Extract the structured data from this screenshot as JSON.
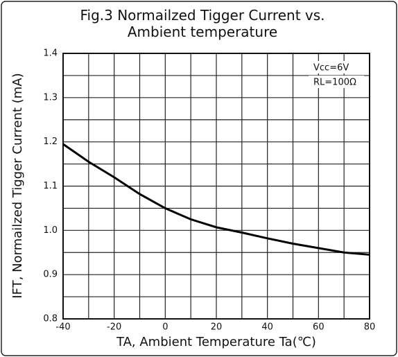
{
  "chart_data": {
    "type": "line",
    "title": "Fig.3  Normailzed Tigger Current vs. Ambient temperature",
    "x_label": "TA, Ambient Temperature Ta(℃)",
    "y_label": "IFT, Normailzed Tigger Current (mA)",
    "annotations": [
      "Vcc=6V",
      "RL=100Ω"
    ],
    "x": [
      -40,
      -30,
      -20,
      -10,
      0,
      10,
      20,
      30,
      40,
      50,
      60,
      70,
      80
    ],
    "series": [
      {
        "color": "#000000",
        "values": [
          1.195,
          1.155,
          1.12,
          1.082,
          1.05,
          1.025,
          1.007,
          0.995,
          0.982,
          0.97,
          0.96,
          0.95,
          0.945
        ]
      }
    ],
    "xlim": [
      -40,
      80
    ],
    "xticks": [
      -40,
      -20,
      0,
      20,
      40,
      60,
      80
    ],
    "xminor": [
      -30,
      -10,
      10,
      30,
      50,
      70
    ],
    "ylim": [
      0.8,
      1.4
    ],
    "yticks": [
      0.8,
      0.9,
      {
        "value": 1,
        "label": "1.0"
      },
      1.1,
      1.2,
      1.3,
      1.4
    ],
    "yminor": [
      0.85,
      0.95,
      1.05,
      1.15,
      1.25,
      1.35
    ],
    "grid": true
  }
}
